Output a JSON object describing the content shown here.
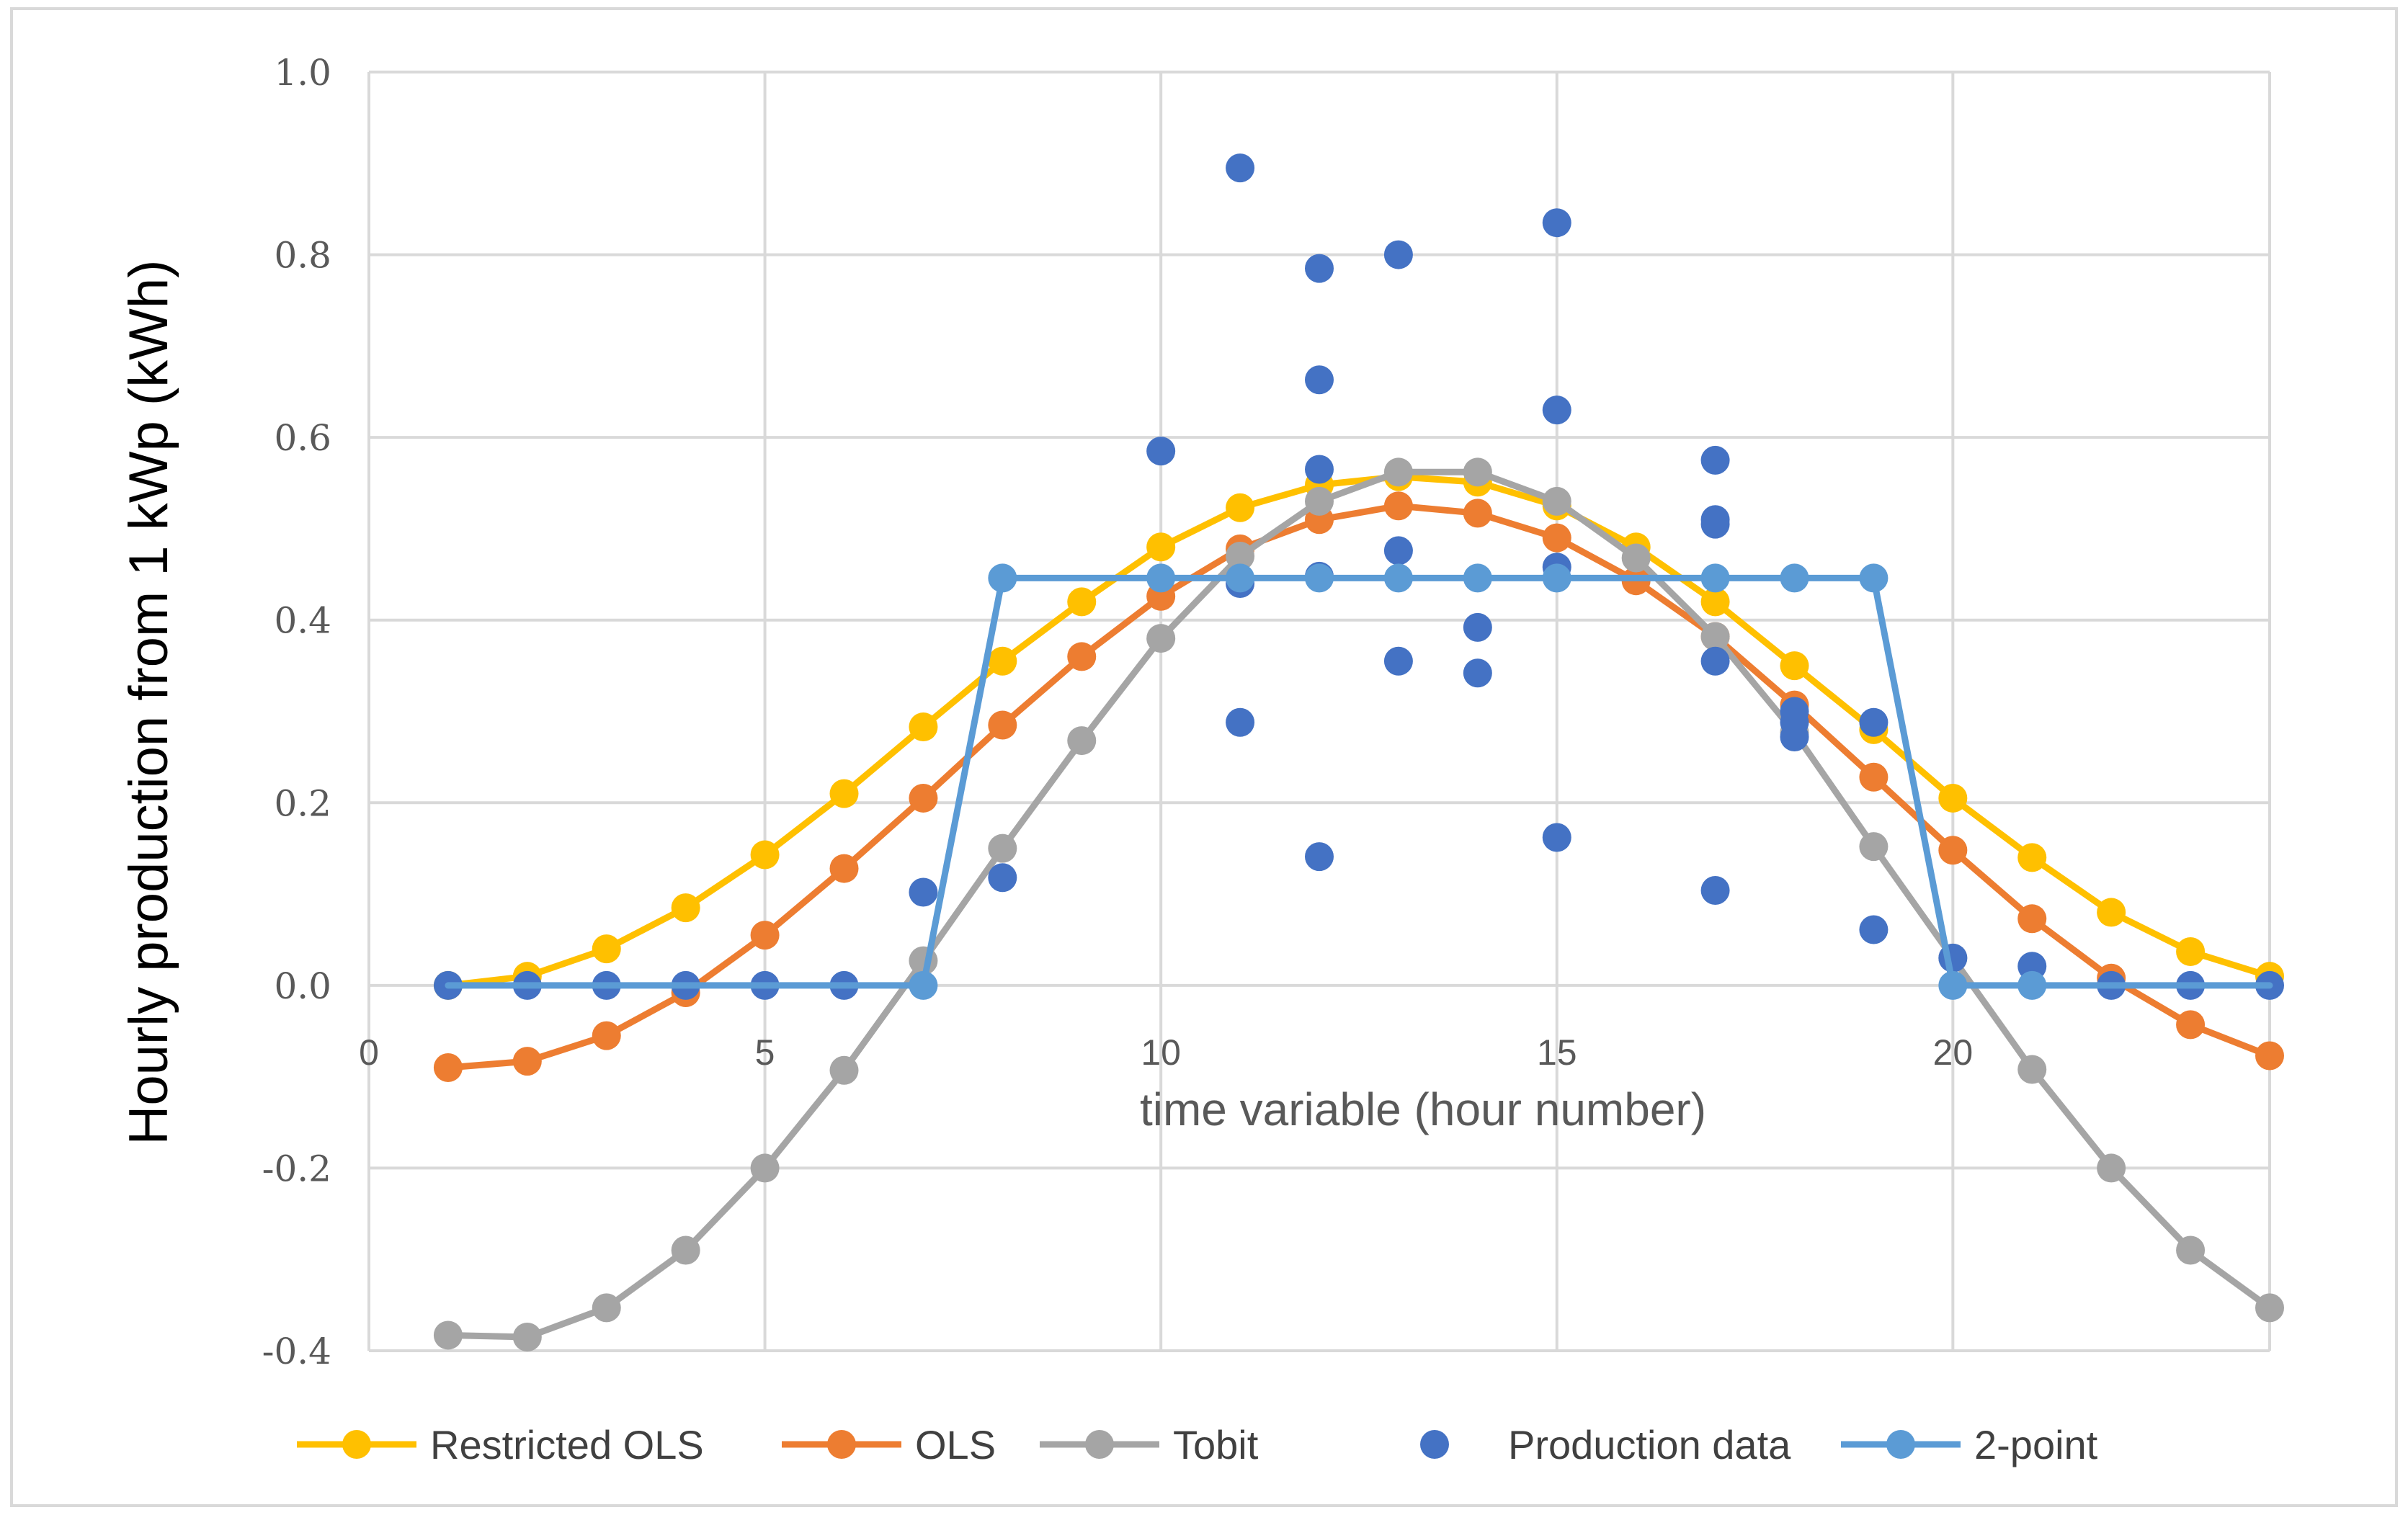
{
  "chart_data": {
    "type": "line",
    "title": "",
    "xlabel": "time variable (hour number)",
    "ylabel": "Hourly production from 1 kWp (kWh)",
    "xlim": [
      0,
      24
    ],
    "ylim": [
      -0.4,
      1.0
    ],
    "x_ticks": [
      0,
      5,
      10,
      15,
      20
    ],
    "x_tick_labels": [
      "0",
      "5",
      "10",
      "15",
      "20"
    ],
    "y_ticks": [
      -0.4,
      -0.2,
      0.0,
      0.2,
      0.4,
      0.6,
      0.8,
      1.0
    ],
    "y_tick_labels": [
      "-0.4",
      "-0.2",
      "0.0",
      "0.2",
      "0.4",
      "0.6",
      "0.8",
      "1.0"
    ],
    "grid": true,
    "legend_position": "bottom",
    "colors": {
      "restricted_ols": "#FFC000",
      "ols": "#ED7D31",
      "tobit": "#A5A5A5",
      "production": "#4472C4",
      "two_point": "#5B9BD5",
      "grid": "#D9D9D9",
      "frame": "#D9D9D9"
    },
    "series": [
      {
        "name": "Restricted OLS",
        "kind": "line-marker",
        "color": "#FFC000",
        "x": [
          1,
          2,
          3,
          4,
          5,
          6,
          7,
          8,
          9,
          10,
          11,
          12,
          13,
          14,
          15,
          16,
          17,
          18,
          19,
          20,
          21,
          22,
          23,
          24
        ],
        "y": [
          0.0,
          0.01,
          0.04,
          0.085,
          0.143,
          0.21,
          0.283,
          0.355,
          0.42,
          0.48,
          0.523,
          0.548,
          0.557,
          0.551,
          0.525,
          0.48,
          0.42,
          0.35,
          0.28,
          0.205,
          0.14,
          0.08,
          0.037,
          0.01
        ]
      },
      {
        "name": "OLS",
        "kind": "line-marker",
        "color": "#ED7D31",
        "x": [
          1,
          2,
          3,
          4,
          5,
          6,
          7,
          8,
          9,
          10,
          11,
          12,
          13,
          14,
          15,
          16,
          17,
          18,
          19,
          20,
          21,
          22,
          23,
          24
        ],
        "y": [
          -0.09,
          -0.083,
          -0.055,
          -0.008,
          0.055,
          0.128,
          0.205,
          0.285,
          0.36,
          0.426,
          0.478,
          0.51,
          0.525,
          0.517,
          0.49,
          0.443,
          0.382,
          0.307,
          0.228,
          0.148,
          0.073,
          0.008,
          -0.043,
          -0.077
        ]
      },
      {
        "name": "Tobit",
        "kind": "line-marker",
        "color": "#A5A5A5",
        "x": [
          1,
          2,
          3,
          4,
          5,
          6,
          7,
          8,
          9,
          10,
          11,
          12,
          13,
          14,
          15,
          16,
          17,
          18,
          19,
          20,
          21,
          22,
          23,
          24
        ],
        "y": [
          -0.383,
          -0.385,
          -0.353,
          -0.29,
          -0.2,
          -0.093,
          0.027,
          0.15,
          0.268,
          0.38,
          0.47,
          0.53,
          0.562,
          0.562,
          0.53,
          0.468,
          0.382,
          0.277,
          0.152,
          0.03,
          -0.092,
          -0.2,
          -0.29,
          -0.353
        ]
      },
      {
        "name": "Production data",
        "kind": "scatter",
        "color": "#4472C4",
        "x": [
          1,
          2,
          3,
          4,
          5,
          6,
          7,
          8,
          10,
          11,
          11,
          11,
          12,
          12,
          12,
          12,
          12,
          13,
          13,
          13,
          14,
          14,
          15,
          15,
          15,
          15,
          17,
          17,
          17,
          17,
          17,
          18,
          18,
          18,
          19,
          19,
          20,
          21,
          22,
          23,
          24
        ],
        "y": [
          0.0,
          0.0,
          0.0,
          0.0,
          0.0,
          0.0,
          0.102,
          0.118,
          0.585,
          0.895,
          0.44,
          0.288,
          0.785,
          0.663,
          0.565,
          0.448,
          0.141,
          0.8,
          0.476,
          0.355,
          0.392,
          0.342,
          0.835,
          0.63,
          0.458,
          0.162,
          0.575,
          0.51,
          0.355,
          0.104,
          0.505,
          0.3,
          0.272,
          0.288,
          0.288,
          0.061,
          0.03,
          0.021,
          0.0,
          0.0,
          0.0
        ]
      },
      {
        "name": "2-point",
        "kind": "line-marker",
        "color": "#5B9BD5",
        "x": [
          7,
          8,
          10,
          11,
          12,
          13,
          14,
          15,
          17,
          18,
          19,
          20,
          21
        ],
        "y": [
          0.0,
          0.446,
          0.446,
          0.446,
          0.446,
          0.446,
          0.446,
          0.446,
          0.446,
          0.446,
          0.446,
          0.0,
          0.0
        ],
        "line_points": [
          [
            1,
            0.0
          ],
          [
            7,
            0.0
          ],
          [
            8,
            0.446
          ],
          [
            19,
            0.446
          ],
          [
            20,
            0.0
          ],
          [
            24,
            0.0
          ]
        ]
      }
    ],
    "legend": [
      "Restricted OLS",
      "OLS",
      "Tobit",
      "Production data",
      "2-point"
    ]
  }
}
